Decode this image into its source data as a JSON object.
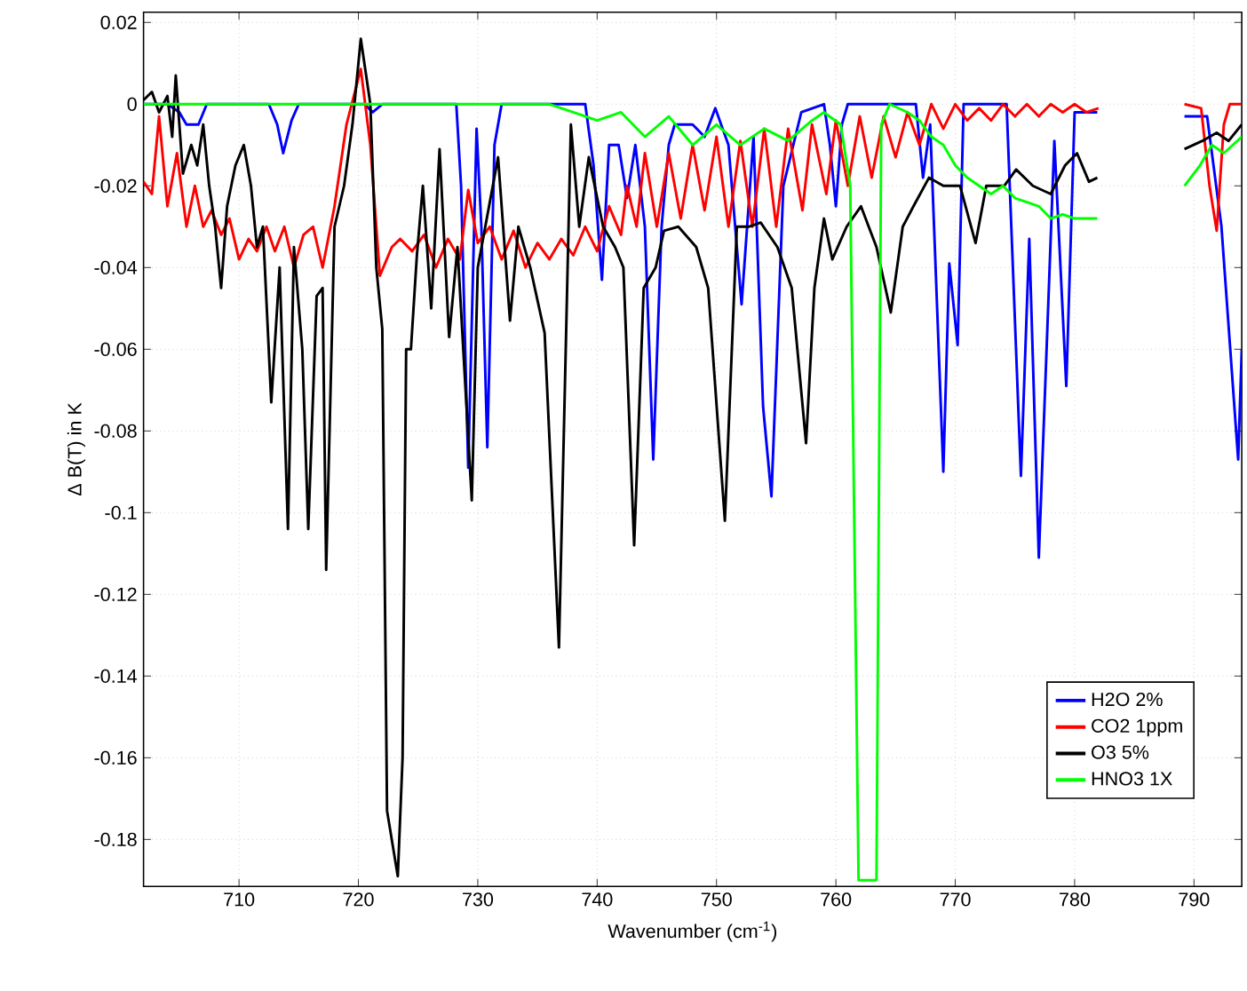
{
  "chart_data": {
    "type": "line",
    "xlabel": "Wavenumber (cm$^{-1}$)",
    "ylabel": "Δ B(T) in K",
    "xlim": [
      702,
      794
    ],
    "ylim": [
      -0.1915,
      0.0225
    ],
    "xticks": [
      710,
      720,
      730,
      740,
      750,
      760,
      770,
      780,
      790
    ],
    "yticks": [
      0.02,
      0,
      -0.02,
      -0.04,
      -0.06,
      -0.08,
      -0.1,
      -0.12,
      -0.14,
      -0.16,
      -0.18
    ],
    "grid": true,
    "legend": "bottom right",
    "marker": "none",
    "line_style": "solid",
    "series": [
      {
        "name": "H2O 2%",
        "color": "#0000ff",
        "x": [
          702,
          704,
          705,
          705.6,
          706.6,
          707.3,
          712.5,
          713.2,
          713.7,
          714.4,
          715,
          720.5,
          721.2,
          722,
          728.2,
          728.6,
          729.2,
          729.9,
          730.3,
          730.8,
          731.4,
          732,
          739,
          739.7,
          740.4,
          741,
          741.8,
          742.5,
          743.2,
          744,
          744.7,
          745.4,
          746,
          746.5,
          748,
          749,
          749.9,
          751,
          752.1,
          753.1,
          753.9,
          754.6,
          755.6,
          757.1,
          759,
          759.5,
          760,
          760.5,
          761,
          766.7,
          767.3,
          767.9,
          769,
          769.5,
          770.2,
          770.7,
          774.3,
          775.5,
          776.2,
          777,
          778.3,
          779.3,
          780,
          781.9,
          785,
          789.2,
          791.1,
          792.3,
          793.7,
          794
        ],
        "values": [
          0,
          0,
          -0.002,
          -0.005,
          -0.005,
          0,
          0,
          -0.005,
          -0.012,
          -0.004,
          0,
          0,
          -0.002,
          0,
          0,
          -0.02,
          -0.089,
          -0.006,
          -0.03,
          -0.084,
          -0.01,
          0,
          0,
          -0.015,
          -0.043,
          -0.01,
          -0.01,
          -0.023,
          -0.01,
          -0.03,
          -0.087,
          -0.03,
          -0.01,
          -0.005,
          -0.005,
          -0.008,
          -0.001,
          -0.01,
          -0.049,
          -0.008,
          -0.074,
          -0.096,
          -0.02,
          -0.002,
          0,
          -0.01,
          -0.025,
          -0.005,
          0,
          0,
          -0.018,
          -0.005,
          -0.09,
          -0.039,
          -0.059,
          0,
          0,
          -0.091,
          -0.033,
          -0.111,
          -0.009,
          -0.069,
          -0.002,
          -0.002,
          null,
          -0.003,
          -0.003,
          -0.03,
          -0.087,
          -0.06
        ]
      },
      {
        "name": "CO2 1ppm",
        "color": "#ff0000",
        "x": [
          702,
          702.7,
          703.3,
          704,
          704.8,
          705.6,
          706.3,
          707,
          707.7,
          708.5,
          709.2,
          710,
          710.8,
          711.5,
          712.3,
          713,
          713.8,
          714.6,
          715.4,
          716.2,
          717,
          718,
          719,
          720.2,
          721,
          721.8,
          722.8,
          723.5,
          724.5,
          725.5,
          726.5,
          727.5,
          728.5,
          729.2,
          730,
          731,
          732,
          733,
          734,
          735,
          736,
          737,
          738,
          739,
          740,
          741,
          742,
          742.5,
          743.3,
          744,
          745,
          746,
          747,
          748,
          749,
          750,
          751,
          752,
          753,
          754,
          755,
          756,
          757.2,
          758,
          759.2,
          760,
          761,
          762,
          763,
          764,
          765,
          766,
          767,
          768,
          769,
          770,
          771,
          772,
          773,
          774,
          775,
          776,
          777,
          778,
          779,
          780,
          781,
          782,
          785,
          789.2,
          790.6,
          791.3,
          791.9,
          792.5,
          793,
          794
        ],
        "values": [
          -0.019,
          -0.022,
          -0.003,
          -0.025,
          -0.012,
          -0.03,
          -0.02,
          -0.03,
          -0.026,
          -0.032,
          -0.028,
          -0.038,
          -0.033,
          -0.036,
          -0.03,
          -0.036,
          -0.03,
          -0.04,
          -0.032,
          -0.03,
          -0.04,
          -0.025,
          -0.005,
          0.0086,
          -0.01,
          -0.042,
          -0.035,
          -0.033,
          -0.036,
          -0.032,
          -0.04,
          -0.033,
          -0.038,
          -0.021,
          -0.034,
          -0.03,
          -0.038,
          -0.031,
          -0.04,
          -0.034,
          -0.038,
          -0.033,
          -0.037,
          -0.03,
          -0.036,
          -0.025,
          -0.032,
          -0.02,
          -0.03,
          -0.012,
          -0.03,
          -0.012,
          -0.028,
          -0.01,
          -0.026,
          -0.008,
          -0.03,
          -0.009,
          -0.03,
          -0.006,
          -0.03,
          -0.006,
          -0.026,
          -0.005,
          -0.022,
          -0.004,
          -0.02,
          -0.003,
          -0.018,
          -0.003,
          -0.013,
          -0.002,
          -0.01,
          0,
          -0.006,
          0,
          -0.004,
          -0.001,
          -0.004,
          0,
          -0.003,
          0,
          -0.003,
          0,
          -0.002,
          0,
          -0.002,
          -0.001,
          null,
          0,
          -0.001,
          -0.02,
          -0.031,
          -0.005,
          0,
          0
        ]
      },
      {
        "name": "O3 5%",
        "color": "#000000",
        "x": [
          702,
          702.7,
          703.3,
          704,
          704.4,
          704.7,
          705.3,
          706,
          706.5,
          707,
          707.5,
          708,
          708.5,
          709,
          709.7,
          710.4,
          711,
          711.5,
          712,
          712.7,
          713.4,
          714.1,
          714.6,
          715.3,
          715.8,
          716.5,
          717,
          717.3,
          718,
          718.8,
          719.5,
          720.2,
          721,
          721.5,
          722,
          722.4,
          723.3,
          723.7,
          724,
          724.4,
          724.9,
          725.4,
          726.1,
          726.8,
          727.6,
          728.3,
          729.5,
          730,
          731.7,
          732.7,
          733.4,
          734.4,
          735.6,
          736.8,
          737.8,
          738.5,
          739.3,
          740.5,
          741.5,
          742.2,
          743.1,
          743.9,
          744.9,
          745.6,
          746.8,
          748.3,
          749.3,
          750.7,
          751.7,
          752.7,
          753.7,
          755.1,
          756.3,
          757.5,
          758.2,
          759,
          759.7,
          760.9,
          762.1,
          763.4,
          764.6,
          765.6,
          766.5,
          767.8,
          769,
          770.4,
          771.7,
          772.6,
          774.1,
          775.1,
          776.5,
          778,
          779.2,
          780.2,
          781.2,
          781.9,
          785,
          789.2,
          790.7,
          791.9,
          792.9,
          794
        ],
        "values": [
          0.001,
          0.003,
          -0.002,
          0.002,
          -0.008,
          0.007,
          -0.017,
          -0.01,
          -0.015,
          -0.005,
          -0.02,
          -0.03,
          -0.045,
          -0.025,
          -0.015,
          -0.01,
          -0.02,
          -0.035,
          -0.03,
          -0.073,
          -0.04,
          -0.104,
          -0.035,
          -0.06,
          -0.104,
          -0.047,
          -0.045,
          -0.114,
          -0.03,
          -0.02,
          -0.005,
          0.016,
          0,
          -0.04,
          -0.055,
          -0.173,
          -0.189,
          -0.16,
          -0.06,
          -0.06,
          -0.037,
          -0.02,
          -0.05,
          -0.011,
          -0.057,
          -0.035,
          -0.097,
          -0.04,
          -0.013,
          -0.053,
          -0.03,
          -0.04,
          -0.056,
          -0.133,
          -0.005,
          -0.03,
          -0.013,
          -0.03,
          -0.035,
          -0.04,
          -0.108,
          -0.045,
          -0.04,
          -0.031,
          -0.03,
          -0.035,
          -0.045,
          -0.102,
          -0.03,
          -0.03,
          -0.029,
          -0.035,
          -0.045,
          -0.083,
          -0.045,
          -0.028,
          -0.038,
          -0.03,
          -0.025,
          -0.035,
          -0.051,
          -0.03,
          -0.025,
          -0.018,
          -0.02,
          -0.02,
          -0.034,
          -0.02,
          -0.02,
          -0.016,
          -0.02,
          -0.022,
          -0.015,
          -0.012,
          -0.019,
          -0.018,
          null,
          -0.011,
          -0.009,
          -0.007,
          -0.009,
          -0.005
        ]
      },
      {
        "name": "HNO3 1X",
        "color": "#00ff00",
        "x": [
          702,
          720,
          736,
          738,
          740,
          742,
          744,
          746,
          748,
          750,
          752,
          754,
          756,
          758,
          759,
          760.4,
          761.2,
          761.9,
          763.4,
          763.8,
          764.5,
          766,
          767,
          768,
          769,
          770,
          771,
          772,
          773,
          774,
          775,
          776,
          777,
          778,
          779,
          780,
          781.9,
          785,
          789.2,
          790.5,
          791.5,
          792.5,
          794
        ],
        "values": [
          0,
          0,
          0,
          -0.002,
          -0.004,
          -0.002,
          -0.008,
          -0.003,
          -0.01,
          -0.005,
          -0.01,
          -0.006,
          -0.009,
          -0.004,
          -0.002,
          -0.005,
          -0.02,
          -0.19,
          -0.19,
          -0.005,
          0,
          -0.002,
          -0.004,
          -0.008,
          -0.01,
          -0.015,
          -0.018,
          -0.02,
          -0.022,
          -0.02,
          -0.023,
          -0.024,
          -0.025,
          -0.028,
          -0.027,
          -0.028,
          -0.028,
          null,
          -0.02,
          -0.015,
          -0.01,
          -0.012,
          -0.008
        ]
      }
    ]
  }
}
